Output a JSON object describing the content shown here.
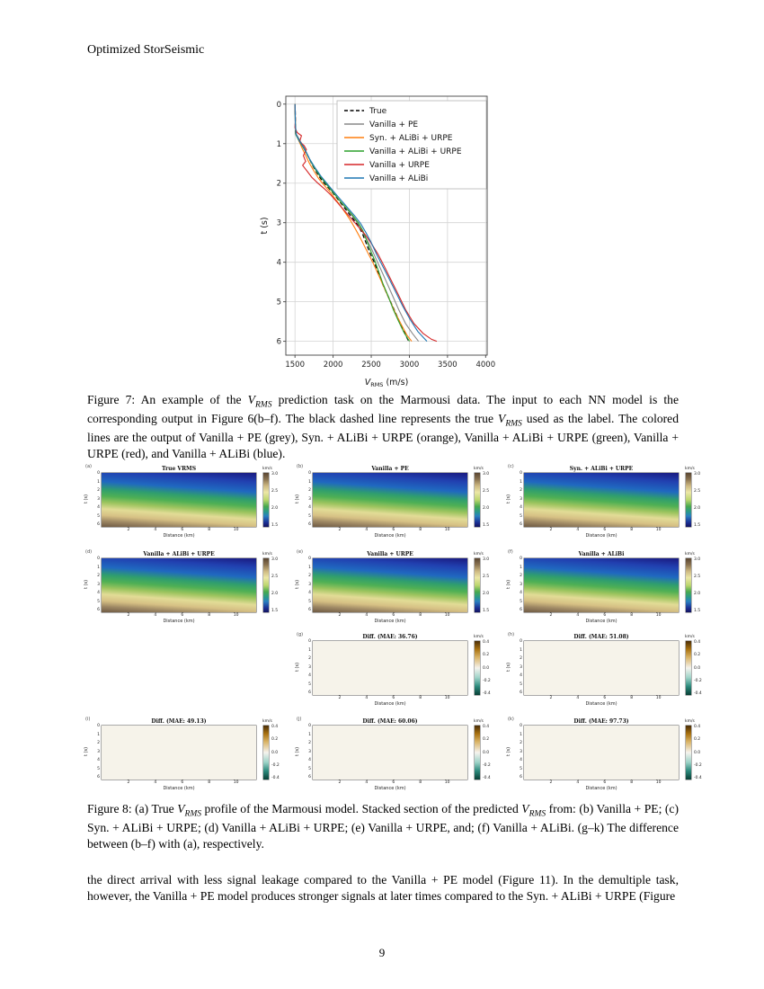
{
  "page": {
    "header": "Optimized StorSeismic",
    "page_number": "9"
  },
  "chart_data": {
    "type": "line",
    "title": "",
    "xlabel_parts": [
      "V",
      "RMS",
      " (m/s)"
    ],
    "ylabel": "t (s)",
    "xlim": [
      1380,
      4020
    ],
    "ylim": [
      -0.2,
      6.35
    ],
    "xticks": [
      1500,
      2000,
      2500,
      3000,
      3500,
      4000
    ],
    "yticks": [
      0,
      1,
      2,
      3,
      4,
      5,
      6
    ],
    "grid": true,
    "legend_position": "upper center-right inside axes",
    "series": [
      {
        "name": "True",
        "color": "#000000",
        "dash": true,
        "points": [
          [
            1500,
            0
          ],
          [
            1505,
            0.3
          ],
          [
            1505,
            0.6
          ],
          [
            1510,
            0.75
          ],
          [
            1555,
            0.9
          ],
          [
            1600,
            1.05
          ],
          [
            1640,
            1.2
          ],
          [
            1680,
            1.35
          ],
          [
            1730,
            1.55
          ],
          [
            1790,
            1.75
          ],
          [
            1860,
            1.95
          ],
          [
            1930,
            2.1
          ],
          [
            2000,
            2.25
          ],
          [
            2080,
            2.45
          ],
          [
            2160,
            2.65
          ],
          [
            2240,
            2.85
          ],
          [
            2320,
            3.05
          ],
          [
            2380,
            3.25
          ],
          [
            2430,
            3.5
          ],
          [
            2480,
            3.75
          ],
          [
            2540,
            4.0
          ],
          [
            2600,
            4.3
          ],
          [
            2660,
            4.6
          ],
          [
            2730,
            4.9
          ],
          [
            2800,
            5.2
          ],
          [
            2870,
            5.5
          ],
          [
            2930,
            5.75
          ],
          [
            2990,
            6.0
          ]
        ]
      },
      {
        "name": "Vanilla + PE",
        "color": "#888888",
        "dash": false,
        "points": [
          [
            1502,
            0
          ],
          [
            1505,
            0.5
          ],
          [
            1515,
            0.75
          ],
          [
            1560,
            0.9
          ],
          [
            1620,
            1.1
          ],
          [
            1670,
            1.3
          ],
          [
            1720,
            1.5
          ],
          [
            1790,
            1.72
          ],
          [
            1870,
            1.92
          ],
          [
            1950,
            2.1
          ],
          [
            2030,
            2.3
          ],
          [
            2110,
            2.5
          ],
          [
            2200,
            2.7
          ],
          [
            2280,
            2.9
          ],
          [
            2350,
            3.1
          ],
          [
            2420,
            3.35
          ],
          [
            2490,
            3.6
          ],
          [
            2560,
            3.9
          ],
          [
            2630,
            4.2
          ],
          [
            2700,
            4.5
          ],
          [
            2780,
            4.85
          ],
          [
            2860,
            5.2
          ],
          [
            2950,
            5.55
          ],
          [
            3040,
            5.8
          ],
          [
            3120,
            6.0
          ]
        ]
      },
      {
        "name": "Syn. + ALiBi + URPE",
        "color": "#ff7f0e",
        "dash": false,
        "points": [
          [
            1500,
            0
          ],
          [
            1505,
            0.5
          ],
          [
            1510,
            0.75
          ],
          [
            1545,
            0.9
          ],
          [
            1590,
            1.1
          ],
          [
            1640,
            1.3
          ],
          [
            1690,
            1.5
          ],
          [
            1750,
            1.7
          ],
          [
            1810,
            1.88
          ],
          [
            1880,
            2.05
          ],
          [
            1950,
            2.2
          ],
          [
            2020,
            2.38
          ],
          [
            2090,
            2.55
          ],
          [
            2150,
            2.72
          ],
          [
            2220,
            2.92
          ],
          [
            2290,
            3.15
          ],
          [
            2360,
            3.4
          ],
          [
            2440,
            3.7
          ],
          [
            2520,
            4.0
          ],
          [
            2590,
            4.3
          ],
          [
            2660,
            4.6
          ],
          [
            2740,
            4.95
          ],
          [
            2820,
            5.3
          ],
          [
            2900,
            5.6
          ],
          [
            2970,
            5.85
          ],
          [
            3030,
            6.0
          ]
        ]
      },
      {
        "name": "Vanilla + ALiBi + URPE",
        "color": "#2ca02c",
        "dash": false,
        "points": [
          [
            1500,
            0
          ],
          [
            1505,
            0.5
          ],
          [
            1512,
            0.78
          ],
          [
            1560,
            0.95
          ],
          [
            1625,
            1.15
          ],
          [
            1680,
            1.35
          ],
          [
            1745,
            1.58
          ],
          [
            1820,
            1.8
          ],
          [
            1900,
            2.0
          ],
          [
            1985,
            2.2
          ],
          [
            2070,
            2.4
          ],
          [
            2160,
            2.6
          ],
          [
            2250,
            2.8
          ],
          [
            2330,
            3.0
          ],
          [
            2390,
            3.2
          ],
          [
            2440,
            3.45
          ],
          [
            2490,
            3.7
          ],
          [
            2545,
            3.95
          ],
          [
            2600,
            4.25
          ],
          [
            2655,
            4.55
          ],
          [
            2720,
            4.85
          ],
          [
            2790,
            5.2
          ],
          [
            2860,
            5.5
          ],
          [
            2930,
            5.78
          ],
          [
            3000,
            6.0
          ]
        ]
      },
      {
        "name": "Vanilla + URPE",
        "color": "#d62728",
        "dash": false,
        "points": [
          [
            1500,
            0
          ],
          [
            1505,
            0.4
          ],
          [
            1500,
            0.6
          ],
          [
            1530,
            0.72
          ],
          [
            1585,
            0.8
          ],
          [
            1560,
            0.95
          ],
          [
            1620,
            1.05
          ],
          [
            1650,
            1.15
          ],
          [
            1610,
            1.3
          ],
          [
            1640,
            1.45
          ],
          [
            1600,
            1.55
          ],
          [
            1660,
            1.7
          ],
          [
            1720,
            1.85
          ],
          [
            1800,
            2.0
          ],
          [
            1890,
            2.15
          ],
          [
            1970,
            2.3
          ],
          [
            2060,
            2.5
          ],
          [
            2150,
            2.7
          ],
          [
            2240,
            2.9
          ],
          [
            2330,
            3.1
          ],
          [
            2420,
            3.3
          ],
          [
            2510,
            3.55
          ],
          [
            2590,
            3.8
          ],
          [
            2670,
            4.1
          ],
          [
            2760,
            4.45
          ],
          [
            2850,
            4.8
          ],
          [
            2950,
            5.2
          ],
          [
            3060,
            5.55
          ],
          [
            3180,
            5.8
          ],
          [
            3290,
            5.95
          ],
          [
            3360,
            6.0
          ]
        ]
      },
      {
        "name": "Vanilla + ALiBi",
        "color": "#1f77b4",
        "dash": false,
        "points": [
          [
            1500,
            0
          ],
          [
            1505,
            0.5
          ],
          [
            1515,
            0.78
          ],
          [
            1565,
            0.95
          ],
          [
            1630,
            1.15
          ],
          [
            1690,
            1.38
          ],
          [
            1760,
            1.6
          ],
          [
            1840,
            1.82
          ],
          [
            1925,
            2.02
          ],
          [
            2010,
            2.22
          ],
          [
            2100,
            2.42
          ],
          [
            2190,
            2.62
          ],
          [
            2280,
            2.82
          ],
          [
            2360,
            3.02
          ],
          [
            2430,
            3.25
          ],
          [
            2500,
            3.5
          ],
          [
            2570,
            3.8
          ],
          [
            2650,
            4.1
          ],
          [
            2730,
            4.4
          ],
          [
            2820,
            4.75
          ],
          [
            2910,
            5.1
          ],
          [
            3010,
            5.45
          ],
          [
            3110,
            5.75
          ],
          [
            3230,
            6.0
          ]
        ]
      }
    ]
  },
  "figure7": {
    "caption_parts": [
      {
        "t": "Figure 7:  An example of the "
      },
      {
        "t": "V",
        "i": true
      },
      {
        "t": "RMS",
        "sub": true,
        "i": true
      },
      {
        "t": " prediction task on the Marmousi data.  The input to each NN model is the corresponding output in Figure 6(b–f). The black dashed line represents the true "
      },
      {
        "t": "V",
        "i": true
      },
      {
        "t": "RMS",
        "sub": true,
        "i": true
      },
      {
        "t": " used as the label. The colored lines are the output of Vanilla + PE (grey), Syn. + ALiBi + URPE (orange), Vanilla + ALiBi + URPE (green), Vanilla + URPE (red), and Vanilla + ALiBi (blue)."
      }
    ]
  },
  "figure8": {
    "caption_parts": [
      {
        "t": "Figure 8: (a) True "
      },
      {
        "t": "V",
        "i": true
      },
      {
        "t": "RMS",
        "sub": true,
        "i": true
      },
      {
        "t": " profile of the Marmousi model.  Stacked section of the predicted "
      },
      {
        "t": "V",
        "i": true
      },
      {
        "t": "RMS",
        "sub": true,
        "i": true
      },
      {
        "t": " from: (b) Vanilla + PE; (c) Syn. + ALiBi + URPE; (d) Vanilla + ALiBi + URPE; (e) Vanilla + URPE, and; (f) Vanilla + ALiBi. (g–k) The difference between (b–f) with (a), respectively."
      }
    ],
    "xlabel": "Distance (km)",
    "ylabel": "t (s)",
    "xticks": [
      "2",
      "4",
      "6",
      "8",
      "10"
    ],
    "yticks": [
      "0",
      "1",
      "2",
      "3",
      "4",
      "5",
      "6"
    ],
    "colorbar_unit": "km/s",
    "vel_cbar_ticks": [
      "3.0",
      "2.5",
      "2.0",
      "1.5"
    ],
    "diff_cbar_ticks": [
      "0.4",
      "0.2",
      "0.0",
      "-0.2",
      "-0.4"
    ],
    "panels": [
      {
        "id": "(a)",
        "title": "True VRMS",
        "kind": "vel",
        "row": 1,
        "col": 1
      },
      {
        "id": "(b)",
        "title": "Vanilla + PE",
        "kind": "vel",
        "row": 1,
        "col": 2
      },
      {
        "id": "(c)",
        "title": "Syn. + ALiBi + URPE",
        "kind": "vel",
        "row": 1,
        "col": 3
      },
      {
        "id": "(d)",
        "title": "Vanilla + ALiBi + URPE",
        "kind": "vel",
        "row": 2,
        "col": 1
      },
      {
        "id": "(e)",
        "title": "Vanilla + URPE",
        "kind": "vel",
        "row": 2,
        "col": 2
      },
      {
        "id": "(f)",
        "title": "Vanilla + ALiBi",
        "kind": "vel",
        "row": 2,
        "col": 3
      },
      {
        "id": "(g)",
        "title": "Diff. (MAE: 36.76)",
        "kind": "diff",
        "row": 3,
        "col": 2,
        "texture": "g"
      },
      {
        "id": "(h)",
        "title": "Diff. (MAE: 51.08)",
        "kind": "diff",
        "row": 3,
        "col": 3,
        "texture": "h"
      },
      {
        "id": "(i)",
        "title": "Diff. (MAE: 49.13)",
        "kind": "diff",
        "row": 4,
        "col": 1,
        "texture": "i"
      },
      {
        "id": "(j)",
        "title": "Diff. (MAE: 60.06)",
        "kind": "diff",
        "row": 4,
        "col": 2,
        "texture": "j"
      },
      {
        "id": "(k)",
        "title": "Diff. (MAE: 97.73)",
        "kind": "diff",
        "row": 4,
        "col": 3,
        "texture": "k"
      }
    ]
  },
  "body_text": "the direct arrival with less signal leakage compared to the Vanilla + PE model (Figure 11).  In the demultiple task, however, the Vanilla + PE model produces stronger signals at later times compared to the Syn. + ALiBi + URPE (Figure"
}
